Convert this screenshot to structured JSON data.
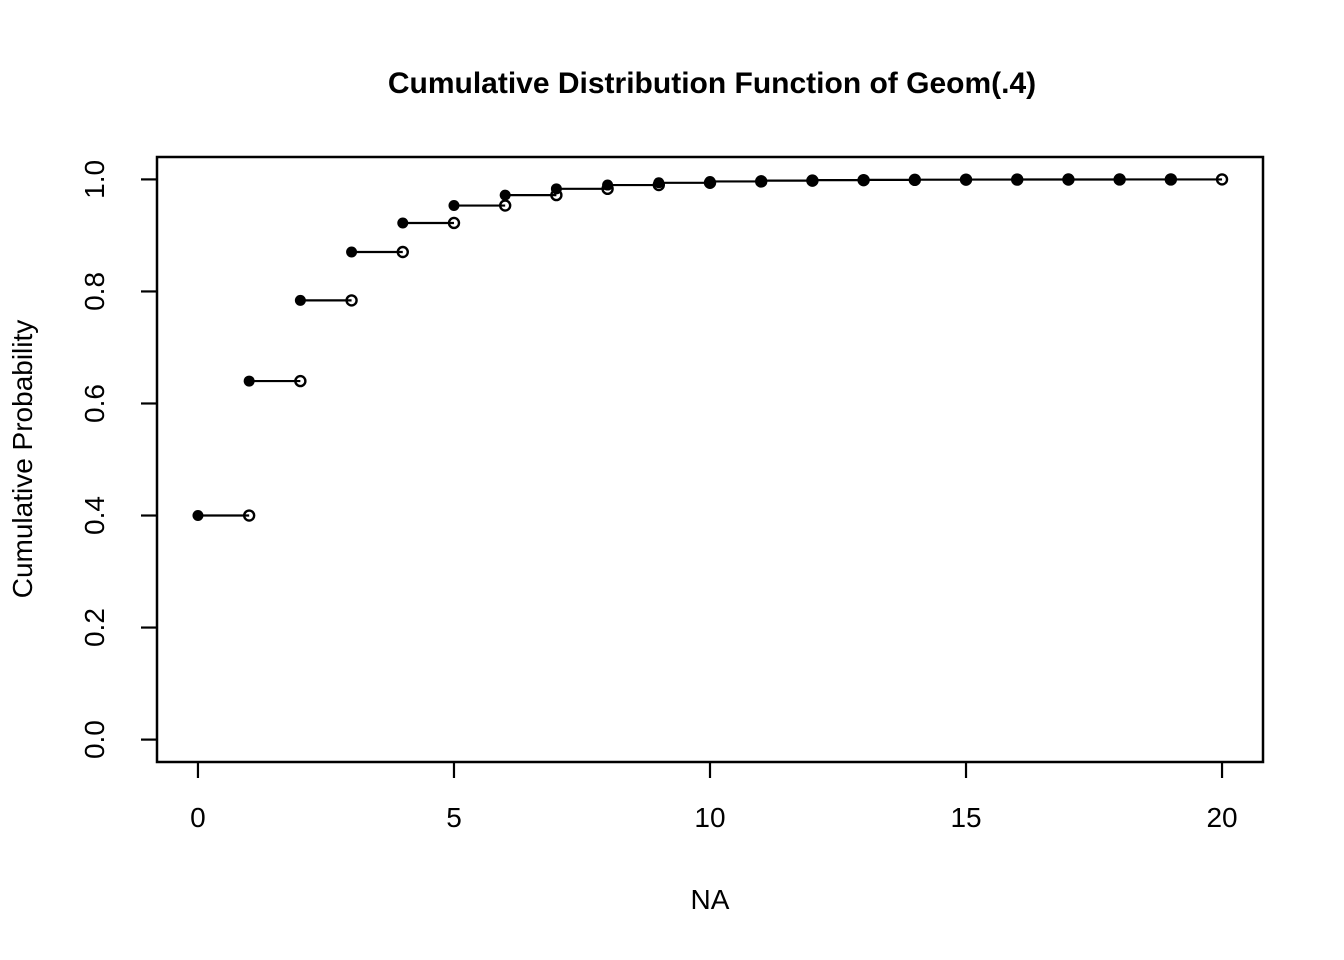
{
  "figure": {
    "background_color": "#ffffff",
    "foreground_color": "#000000"
  },
  "chart_data": {
    "type": "step",
    "title": "Cumulative Distribution Function of Geom(.4)",
    "xlabel": "NA",
    "ylabel": "Cumulative Probability",
    "x": [
      0,
      1,
      2,
      3,
      4,
      5,
      6,
      7,
      8,
      9,
      10,
      11,
      12,
      13,
      14,
      15,
      16,
      17,
      18,
      19
    ],
    "y": [
      0.4,
      0.64,
      0.784,
      0.8704,
      0.92224,
      0.953344,
      0.9720064,
      0.98320384,
      0.9899223,
      0.99395338,
      0.99637203,
      0.99782322,
      0.99869393,
      0.99921636,
      0.99952982,
      0.99971789,
      0.99983073,
      0.99989844,
      0.99993906,
      0.99996344
    ],
    "step_width": 1,
    "left_marker": "filled-circle",
    "right_marker": "open-circle",
    "xlim": [
      0,
      20
    ],
    "ylim": [
      0,
      1
    ],
    "xticks": [
      0,
      5,
      10,
      15,
      20
    ],
    "xtick_labels": [
      "0",
      "5",
      "10",
      "15",
      "20"
    ],
    "yticks": [
      0,
      0.2,
      0.4,
      0.6,
      0.8,
      1
    ],
    "ytick_labels": [
      "0.0",
      "0.2",
      "0.4",
      "0.6",
      "0.8",
      "1.0"
    ],
    "grid": false,
    "legend": null,
    "line_color": "#000000",
    "marker_color": "#000000"
  }
}
